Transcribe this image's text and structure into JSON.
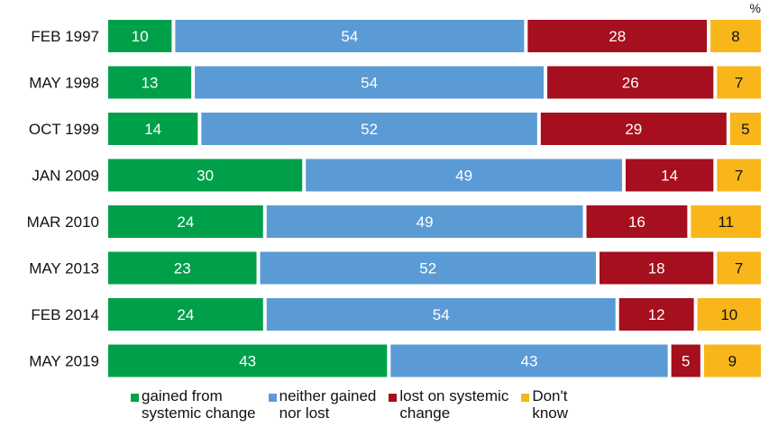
{
  "chart_data": {
    "type": "bar",
    "orientation": "horizontal",
    "stacked": true,
    "unit_label": "%",
    "categories": [
      "FEB 1997",
      "MAY 1998",
      "OCT 1999",
      "JAN 2009",
      "MAR 2010",
      "MAY 2013",
      "FEB 2014",
      "MAY 2019"
    ],
    "series": [
      {
        "name": "gained from systemic change",
        "color": "#00a04a",
        "values": [
          10,
          13,
          14,
          30,
          24,
          23,
          24,
          43
        ]
      },
      {
        "name": "neither gained nor lost",
        "color": "#5b9bd5",
        "values": [
          54,
          54,
          52,
          49,
          49,
          52,
          54,
          43
        ]
      },
      {
        "name": "lost on systemic change",
        "color": "#a50f1e",
        "values": [
          28,
          26,
          29,
          14,
          16,
          18,
          12,
          5
        ]
      },
      {
        "name": "Don't know",
        "color": "#f8b61b",
        "values": [
          8,
          7,
          5,
          7,
          11,
          7,
          10,
          9
        ]
      }
    ],
    "legend_position": "bottom",
    "grid": false
  },
  "legend": {
    "items": [
      {
        "label": "gained from\nsystemic change",
        "color": "#00a04a"
      },
      {
        "label": "neither gained\nnor lost",
        "color": "#5b9bd5"
      },
      {
        "label": "lost on systemic\nchange",
        "color": "#a50f1e"
      },
      {
        "label": "Don't\nknow",
        "color": "#f8b61b"
      }
    ]
  }
}
